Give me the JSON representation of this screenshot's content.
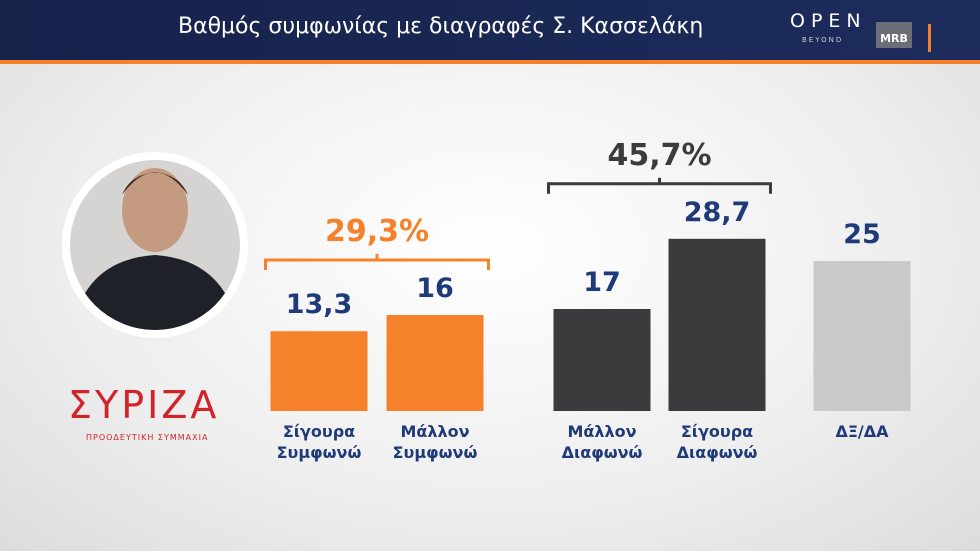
{
  "header": {
    "title": "Βαθμός συμφωνίας με διαγραφές Σ. Κασσελάκη",
    "brand": "OPEN",
    "brand_sub": "BEYOND",
    "pollster": "MRB"
  },
  "party": {
    "name": "ΣΥΡΙΖΑ",
    "subtitle": "ΠΡΟΟΔΕΥΤΙΚΗ ΣΥΜΜΑΧΙΑ"
  },
  "chart_data": {
    "type": "bar",
    "categories": [
      "Σίγουρα Συμφωνώ",
      "Μάλλον Συμφωνώ",
      "Μάλλον Διαφωνώ",
      "Σίγουρα Διαφωνώ",
      "ΔΞ/ΔΑ"
    ],
    "values": [
      13.3,
      16,
      17,
      28.7,
      25
    ],
    "value_labels": [
      "13,3",
      "16",
      "17",
      "28,7",
      "25"
    ],
    "colors": [
      "#f5822a",
      "#f5822a",
      "#3b3b3d",
      "#3b3b3d",
      "#c9c9c9"
    ],
    "annotations": [
      {
        "text": "29,3%",
        "color": "#f5822a"
      },
      {
        "text": "45,7%",
        "color": "#3b3b3d"
      }
    ]
  }
}
